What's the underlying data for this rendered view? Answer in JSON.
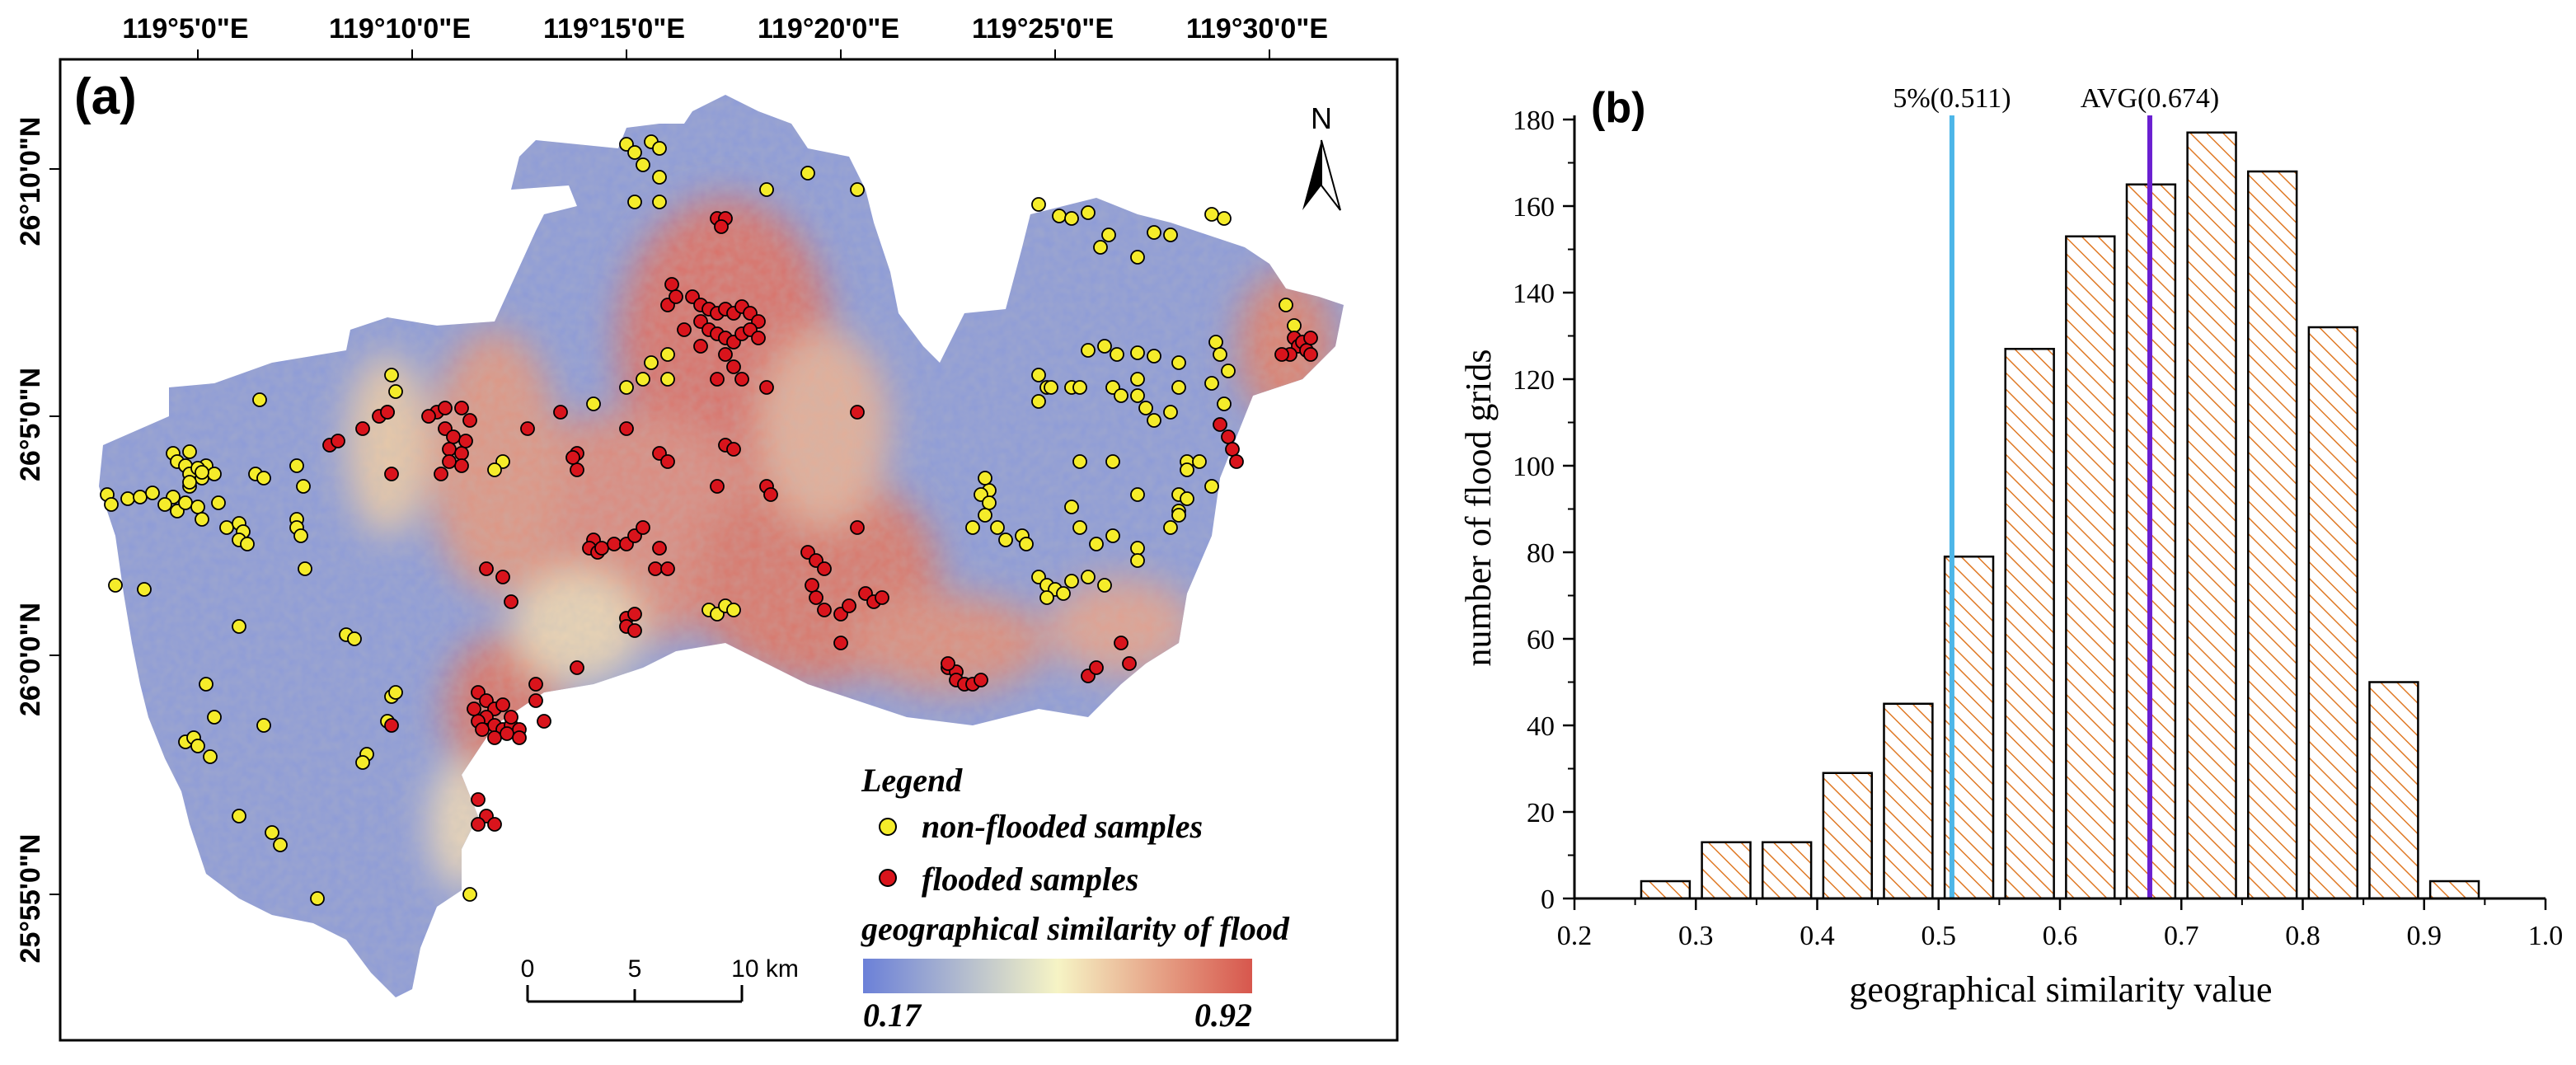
{
  "panel_a": {
    "label": "(a)",
    "lon_ticks": [
      "119°5'0\"E",
      "119°10'0\"E",
      "119°15'0\"E",
      "119°20'0\"E",
      "119°25'0\"E",
      "119°30'0\"E"
    ],
    "lat_ticks": [
      "26°10'0\"N",
      "26°5'0\"N",
      "26°0'0\"N",
      "25°55'0\"N"
    ],
    "north_label": "N",
    "scale_bar": {
      "labels": [
        "0",
        "5",
        "10 km"
      ]
    },
    "legend": {
      "title": "Legend",
      "non_flooded_label": "non-flooded samples",
      "flooded_label": "flooded samples",
      "similarity_label": "geographical similarity of flood",
      "min_value": "0.17",
      "max_value": "0.92"
    },
    "colors": {
      "non_flooded": "#f5ec2a",
      "flooded": "#d9141c",
      "ramp_low": "#6b80d8",
      "ramp_mid": "#f6f4c5",
      "ramp_high": "#d7574d"
    }
  },
  "panel_b": {
    "label": "(b)",
    "chart_data": {
      "type": "bar",
      "title": "",
      "xlabel": "geographical similarity value",
      "ylabel": "number of flood grids",
      "x_bin_centers": [
        0.275,
        0.325,
        0.375,
        0.425,
        0.475,
        0.525,
        0.575,
        0.625,
        0.675,
        0.725,
        0.775,
        0.825,
        0.875,
        0.925
      ],
      "values": [
        4,
        13,
        13,
        29,
        45,
        79,
        127,
        153,
        165,
        177,
        168,
        132,
        50,
        4
      ],
      "bin_width": 0.04,
      "xlim": [
        0.2,
        1.0
      ],
      "ylim": [
        0,
        180
      ],
      "x_ticks": [
        0.2,
        0.3,
        0.4,
        0.5,
        0.6,
        0.7,
        0.8,
        0.9,
        1.0
      ],
      "x_tick_labels": [
        "0.2",
        "0.3",
        "0.4",
        "0.5",
        "0.6",
        "0.7",
        "0.8",
        "0.9",
        "1.0"
      ],
      "y_ticks": [
        0,
        20,
        40,
        60,
        80,
        100,
        120,
        140,
        160,
        180
      ],
      "y_tick_labels": [
        "0",
        "20",
        "40",
        "60",
        "80",
        "100",
        "120",
        "140",
        "160",
        "180"
      ],
      "reference_lines": [
        {
          "label": "5%(0.511)",
          "x": 0.511,
          "color": "#4db6e8"
        },
        {
          "label": "AVG(0.674)",
          "x": 0.674,
          "color": "#6a1fd1"
        }
      ],
      "bar_color": "#e07a26"
    }
  }
}
